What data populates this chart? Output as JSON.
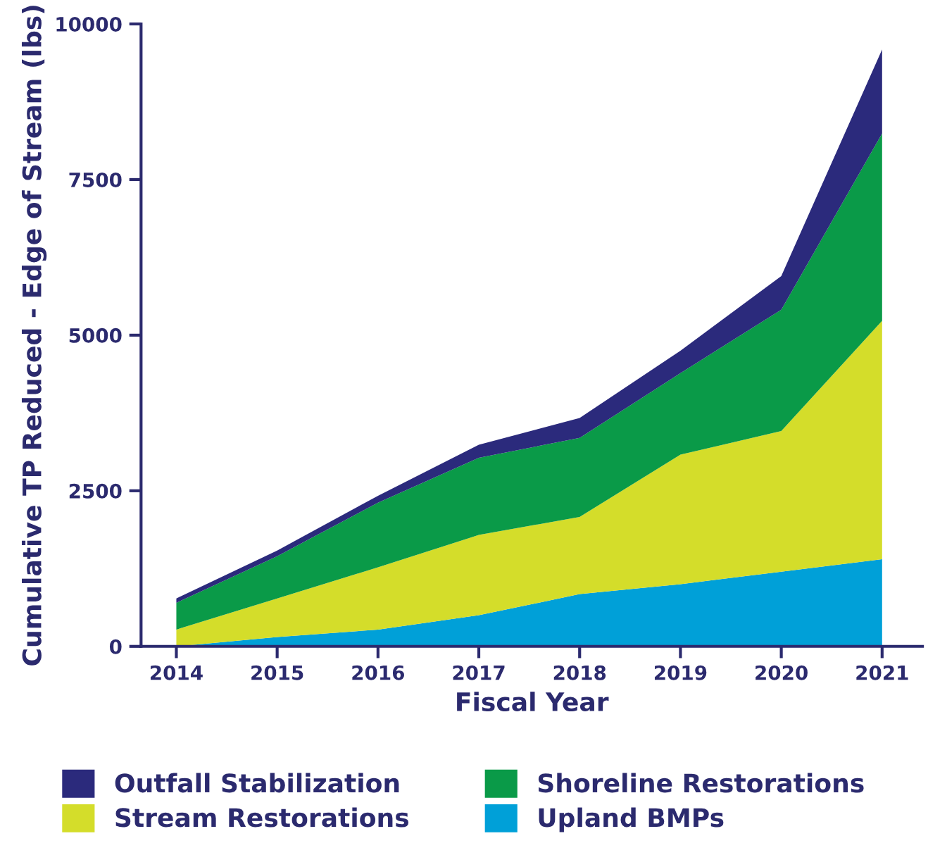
{
  "chart_data": {
    "type": "area",
    "stacked": true,
    "xlabel": "Fiscal Year",
    "ylabel": "Cumulative TP Reduced - Edge of Stream (lbs)",
    "x": [
      2014,
      2015,
      2016,
      2017,
      2018,
      2019,
      2020,
      2021
    ],
    "xlim": [
      2013.65,
      2021.4
    ],
    "xticks": [
      2014,
      2015,
      2016,
      2017,
      2018,
      2019,
      2020,
      2021
    ],
    "ylim": [
      0,
      10000
    ],
    "yticks": [
      0,
      2500,
      5000,
      7500,
      10000
    ],
    "series": [
      {
        "name": "Upland BMPs",
        "color": "#00a0d8",
        "values": [
          0,
          150,
          270,
          500,
          840,
          1000,
          1200,
          1400
        ]
      },
      {
        "name": "Stream Restorations",
        "color": "#d4dd2a",
        "values": [
          270,
          620,
          1000,
          1290,
          1240,
          2080,
          2260,
          3830
        ]
      },
      {
        "name": "Shoreline Restorations",
        "color": "#0a9a48",
        "values": [
          430,
          680,
          1040,
          1240,
          1270,
          1310,
          1950,
          3010
        ]
      },
      {
        "name": "Outfall Stabilization",
        "color": "#2b2a7c",
        "values": [
          70,
          90,
          110,
          210,
          320,
          360,
          540,
          1350
        ]
      }
    ],
    "legend": "bottom",
    "grid": false
  }
}
